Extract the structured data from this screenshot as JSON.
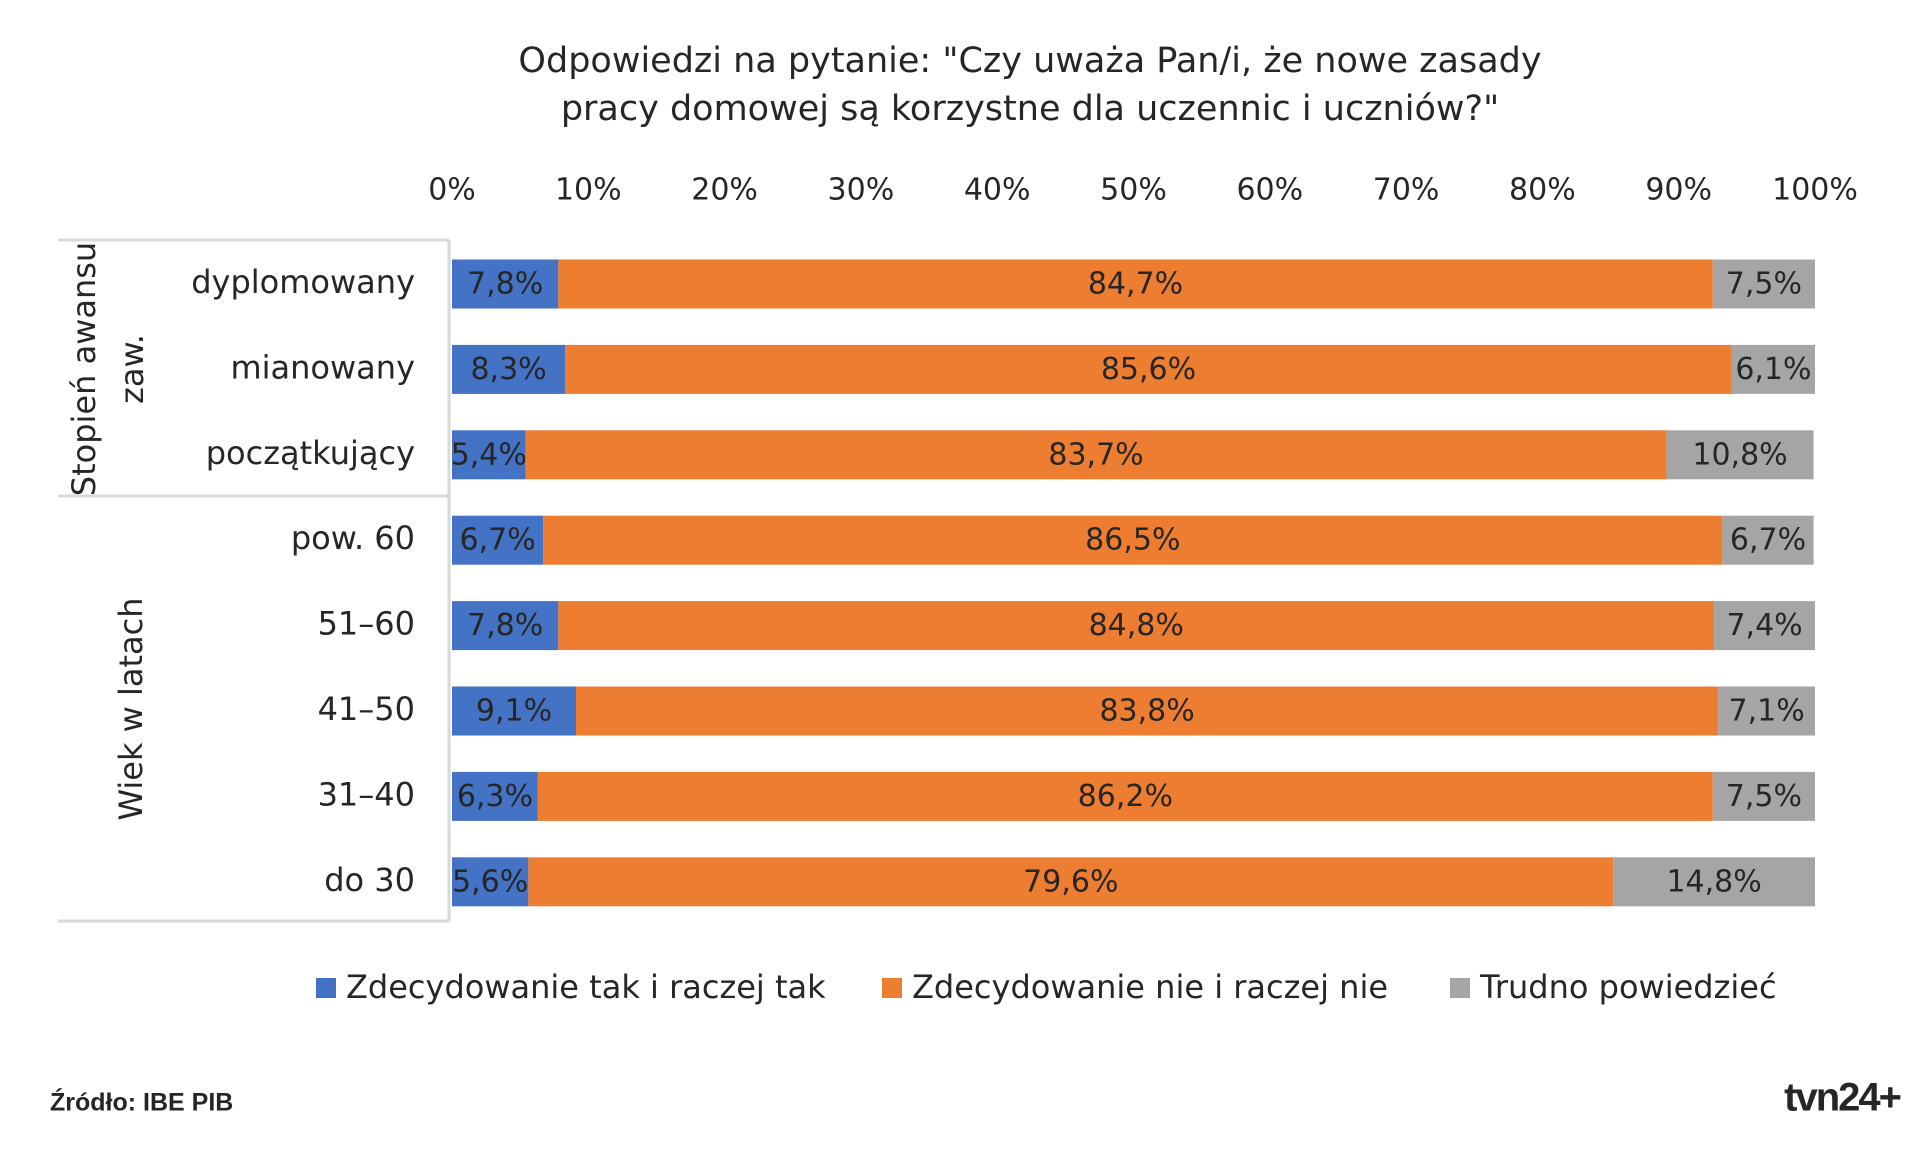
{
  "chart_data": {
    "type": "stacked-bar",
    "title": [
      "Odpowiedzi na pytanie: \"Czy uważa Pan/i, że nowe zasady",
      "pracy domowej są korzystne dla uczennic i uczniów?\""
    ],
    "groups": [
      {
        "label": [
          "Stopień awansu",
          "zaw."
        ]
      },
      {
        "label": [
          "Wiek w latach"
        ]
      }
    ],
    "categories": [
      "dyplomowany",
      "mianowany",
      "początkujący",
      "pow. 60",
      "51–60",
      "41–50",
      "31–40",
      "do 30"
    ],
    "series": [
      {
        "name": "Zdecydowanie tak i raczej tak",
        "color": "#4472c4",
        "label_color": "#ffffff",
        "values": [
          7.8,
          8.3,
          5.4,
          6.7,
          7.8,
          9.1,
          6.3,
          5.6
        ],
        "value_labels": [
          "7,8%",
          "8,3%",
          "5,4%",
          "6,7%",
          "7,8%",
          "9,1%",
          "6,3%",
          "5,6%"
        ]
      },
      {
        "name": "Zdecydowanie nie i raczej nie",
        "color": "#ed7d31",
        "label_color": "#262626",
        "values": [
          84.7,
          85.6,
          83.7,
          86.5,
          84.8,
          83.8,
          86.2,
          79.6
        ],
        "value_labels": [
          "84,7%",
          "85,6%",
          "83,7%",
          "86,5%",
          "84,8%",
          "83,8%",
          "86,2%",
          "79,6%"
        ]
      },
      {
        "name": "Trudno powiedzieć",
        "color": "#a5a5a5",
        "label_color": "#262626",
        "values": [
          7.5,
          6.1,
          10.8,
          6.7,
          7.4,
          7.1,
          7.5,
          14.8
        ],
        "value_labels": [
          "7,5%",
          "6,1%",
          "10,8%",
          "6,7%",
          "7,4%",
          "7,1%",
          "7,5%",
          "14,8%"
        ]
      }
    ],
    "xlim": [
      0,
      100
    ],
    "xticks": [
      {
        "value": 0,
        "label": "0%"
      },
      {
        "value": 10,
        "label": "10%"
      },
      {
        "value": 20,
        "label": "20%"
      },
      {
        "value": 30,
        "label": "30%"
      },
      {
        "value": 40,
        "label": "40%"
      },
      {
        "value": 50,
        "label": "50%"
      },
      {
        "value": 60,
        "label": "60%"
      },
      {
        "value": 70,
        "label": "70%"
      },
      {
        "value": 80,
        "label": "80%"
      },
      {
        "value": 90,
        "label": "90%"
      },
      {
        "value": 100,
        "label": "100%"
      }
    ],
    "grid": false,
    "legend": "bottom",
    "source": "Źródło: IBE PIB",
    "logo": "tvn24+"
  }
}
